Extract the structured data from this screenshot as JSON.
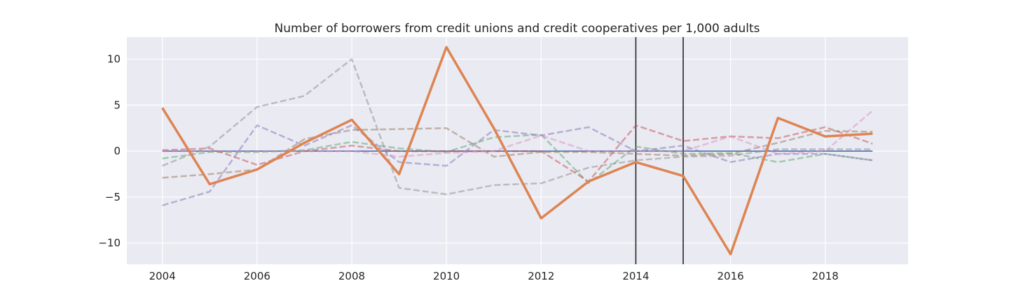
{
  "chart_data": {
    "type": "line",
    "title": "Number of borrowers from credit unions and credit cooperatives per 1,000 adults",
    "xlabel": "",
    "ylabel": "",
    "xlim": [
      2003.25,
      2019.75
    ],
    "ylim": [
      -12.3,
      12.4
    ],
    "xticks": [
      2004,
      2006,
      2008,
      2010,
      2012,
      2014,
      2016,
      2018
    ],
    "yticks": [
      10,
      5,
      0,
      -5,
      -10
    ],
    "ytick_labels": [
      "10",
      "5",
      "0",
      "−5",
      "−10"
    ],
    "grid": true,
    "background": "#eaeaf2",
    "vertical_lines": [
      2014,
      2015
    ],
    "x": [
      2004,
      2005,
      2006,
      2007,
      2008,
      2009,
      2010,
      2011,
      2012,
      2013,
      2014,
      2015,
      2016,
      2017,
      2018,
      2019
    ],
    "series": [
      {
        "color": "#4c72b0",
        "style": "solid",
        "width": 1.6,
        "values": [
          0,
          0,
          0,
          0,
          0,
          0,
          0,
          0,
          0,
          0,
          0,
          0,
          0,
          0,
          0,
          0
        ]
      },
      {
        "color": "#dd8452",
        "style": "solid",
        "width": 3.5,
        "highlight": true,
        "values": [
          4.7,
          -3.6,
          -2.0,
          0.9,
          3.4,
          -2.5,
          11.3,
          2.5,
          -7.3,
          -3.3,
          -1.2,
          -2.7,
          -11.2,
          3.6,
          1.6,
          1.9
        ]
      },
      {
        "color": "#55a868",
        "style": "dashed",
        "values": [
          -0.8,
          -0.1,
          -0.1,
          0.1,
          1.0,
          0.3,
          -0.1,
          1.5,
          1.8,
          -3.5,
          0.5,
          -0.3,
          -0.2,
          -1.2,
          -0.3,
          -1.0
        ]
      },
      {
        "color": "#c44e52",
        "style": "dashed",
        "values": [
          0.1,
          0.3,
          -1.5,
          0.0,
          0.6,
          0.0,
          0.0,
          0.0,
          0.0,
          -3.3,
          2.8,
          1.1,
          1.6,
          1.4,
          2.6,
          0.8
        ]
      },
      {
        "color": "#8172b3",
        "style": "dashed",
        "values": [
          -5.9,
          -4.4,
          2.8,
          0.6,
          2.8,
          -1.2,
          -1.6,
          2.3,
          1.7,
          2.6,
          0.0,
          0.6,
          -1.2,
          -0.3,
          -0.3,
          -1.0
        ]
      },
      {
        "color": "#937860",
        "style": "dashed",
        "values": [
          -2.9,
          -2.5,
          -2.0,
          1.3,
          2.3,
          2.4,
          2.5,
          -0.6,
          -0.1,
          -0.1,
          -0.3,
          -0.5,
          -0.3,
          0.9,
          2.2,
          2.1
        ]
      },
      {
        "color": "#da8bc3",
        "style": "dashed",
        "values": [
          0.0,
          0.0,
          0.0,
          0.0,
          0.0,
          -0.6,
          -0.2,
          0.0,
          1.7,
          0.0,
          0.0,
          0.0,
          1.6,
          -0.3,
          0.0,
          4.4
        ]
      },
      {
        "color": "#8c8c8c",
        "style": "dashed",
        "values": [
          -1.6,
          0.5,
          4.8,
          6.0,
          10.0,
          -4.0,
          -4.7,
          -3.7,
          -3.5,
          -1.8,
          -1.0,
          -0.6,
          -0.5,
          0.2,
          0.2,
          0.2
        ]
      }
    ]
  }
}
